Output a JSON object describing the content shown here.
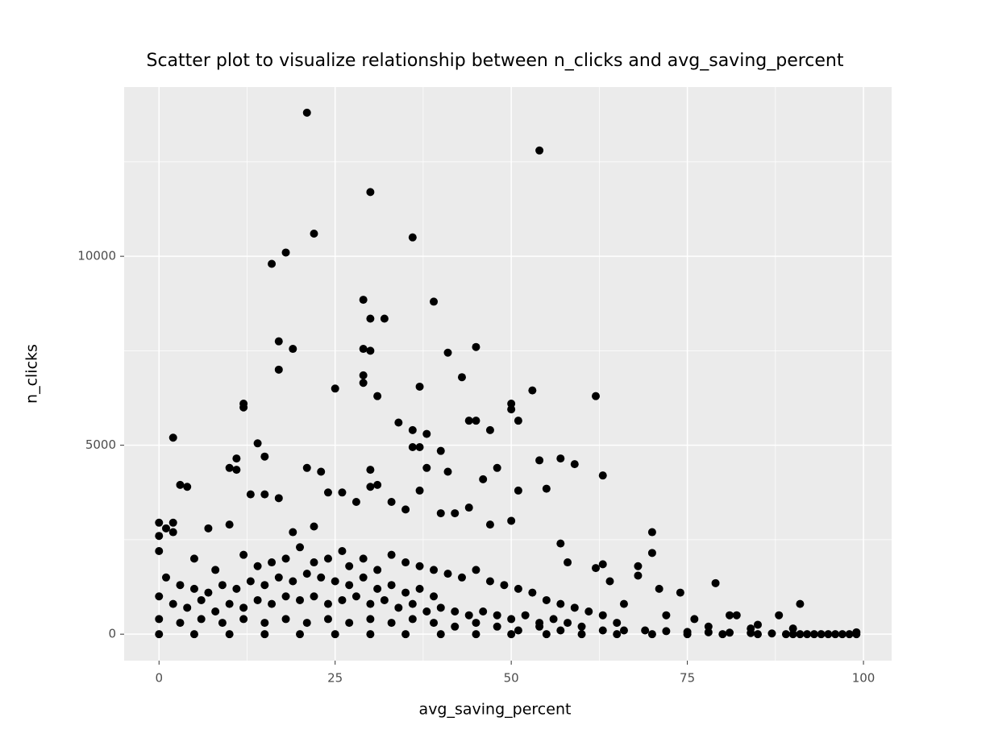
{
  "chart_data": {
    "type": "scatter",
    "title": "Scatter plot to visualize relationship between n_clicks and avg_saving_percent",
    "x_label": "avg_saving_percent",
    "y_label": "n_clicks",
    "xlim": [
      -4.95,
      104
    ],
    "ylim": [
      -700,
      14480
    ],
    "xticks": [
      0,
      25,
      50,
      75,
      100
    ],
    "yticks": [
      0,
      5000,
      10000
    ],
    "grid": true,
    "color": "#000000",
    "x": [
      21,
      54,
      30,
      22,
      36,
      18,
      16,
      29,
      39,
      30,
      32,
      17,
      19,
      29,
      30,
      41,
      45,
      17,
      29,
      43,
      29,
      37,
      25,
      53,
      31,
      62,
      12,
      12,
      50,
      50,
      51,
      44,
      45,
      34,
      36,
      38,
      47,
      2,
      14,
      36,
      37,
      40,
      15,
      11,
      54,
      57,
      59,
      10,
      11,
      21,
      23,
      30,
      38,
      41,
      48,
      63,
      46,
      3,
      4,
      31,
      30,
      51,
      55,
      24,
      26,
      37,
      13,
      15,
      17,
      70,
      70,
      79,
      74,
      91,
      88,
      81,
      82,
      85,
      90,
      0,
      0,
      0,
      2,
      2,
      1,
      7,
      10,
      19,
      22,
      28,
      33,
      35,
      40,
      42,
      44,
      47,
      50,
      57,
      58,
      62,
      63,
      68,
      68,
      71,
      64,
      66,
      72,
      76,
      78,
      84,
      5,
      8,
      12,
      14,
      16,
      18,
      20,
      22,
      24,
      26,
      27,
      29,
      31,
      33,
      35,
      37,
      39,
      41,
      43,
      45,
      47,
      49,
      51,
      53,
      55,
      57,
      59,
      61,
      63,
      65,
      1,
      3,
      5,
      7,
      9,
      11,
      13,
      15,
      17,
      19,
      21,
      23,
      25,
      27,
      29,
      31,
      33,
      35,
      37,
      39,
      0,
      2,
      4,
      6,
      8,
      10,
      12,
      14,
      16,
      18,
      20,
      22,
      24,
      26,
      28,
      30,
      32,
      34,
      36,
      38,
      40,
      42,
      44,
      46,
      48,
      50,
      52,
      54,
      56,
      58,
      0,
      3,
      6,
      9,
      12,
      15,
      18,
      21,
      24,
      27,
      30,
      33,
      36,
      39,
      42,
      45,
      48,
      51,
      54,
      57,
      60,
      63,
      66,
      69,
      72,
      75,
      78,
      81,
      84,
      87,
      0,
      5,
      10,
      15,
      20,
      25,
      30,
      35,
      40,
      45,
      50,
      55,
      60,
      65,
      70,
      75,
      80,
      85,
      90,
      95,
      91,
      92,
      93,
      94,
      96,
      97,
      98,
      99,
      89,
      99
    ],
    "y": [
      13800,
      12800,
      11700,
      10600,
      10500,
      10100,
      9800,
      8850,
      8800,
      8350,
      8350,
      7750,
      7550,
      7550,
      7500,
      7450,
      7600,
      7000,
      6850,
      6800,
      6650,
      6550,
      6500,
      6450,
      6300,
      6300,
      6100,
      6000,
      6100,
      5950,
      5650,
      5650,
      5650,
      5600,
      5400,
      5300,
      5400,
      5200,
      5050,
      4950,
      4950,
      4850,
      4700,
      4650,
      4600,
      4650,
      4500,
      4400,
      4350,
      4400,
      4300,
      4350,
      4400,
      4300,
      4400,
      4200,
      4100,
      3950,
      3900,
      3950,
      3900,
      3800,
      3850,
      3750,
      3750,
      3800,
      3700,
      3700,
      3600,
      2700,
      2150,
      1350,
      1100,
      800,
      500,
      500,
      500,
      250,
      150,
      2950,
      2600,
      2200,
      2950,
      2700,
      2800,
      2800,
      2900,
      2700,
      2850,
      3500,
      3500,
      3300,
      3200,
      3200,
      3350,
      2900,
      3000,
      2400,
      1900,
      1750,
      1850,
      1800,
      1550,
      1200,
      1400,
      800,
      500,
      400,
      200,
      150,
      2000,
      1700,
      2100,
      1800,
      1900,
      2000,
      2300,
      1900,
      2000,
      2200,
      1800,
      2000,
      1700,
      2100,
      1900,
      1800,
      1700,
      1600,
      1500,
      1700,
      1400,
      1300,
      1200,
      1100,
      900,
      800,
      700,
      600,
      500,
      300,
      1500,
      1300,
      1200,
      1100,
      1300,
      1200,
      1400,
      1300,
      1500,
      1400,
      1600,
      1500,
      1400,
      1300,
      1500,
      1200,
      1300,
      1100,
      1200,
      1000,
      1000,
      800,
      700,
      900,
      600,
      800,
      700,
      900,
      800,
      1000,
      900,
      1000,
      800,
      900,
      1000,
      800,
      900,
      700,
      800,
      600,
      700,
      600,
      500,
      600,
      500,
      400,
      500,
      300,
      400,
      300,
      400,
      300,
      400,
      300,
      400,
      300,
      400,
      300,
      400,
      300,
      400,
      300,
      400,
      300,
      200,
      300,
      200,
      100,
      200,
      100,
      200,
      100,
      100,
      100,
      80,
      60,
      50,
      40,
      30,
      20,
      0,
      0,
      0,
      0,
      0,
      0,
      0,
      0,
      0,
      0,
      0,
      0,
      0,
      0,
      0,
      0,
      0,
      0,
      0,
      0,
      0,
      0,
      0,
      0,
      0,
      0,
      0,
      0,
      0,
      50
    ]
  }
}
